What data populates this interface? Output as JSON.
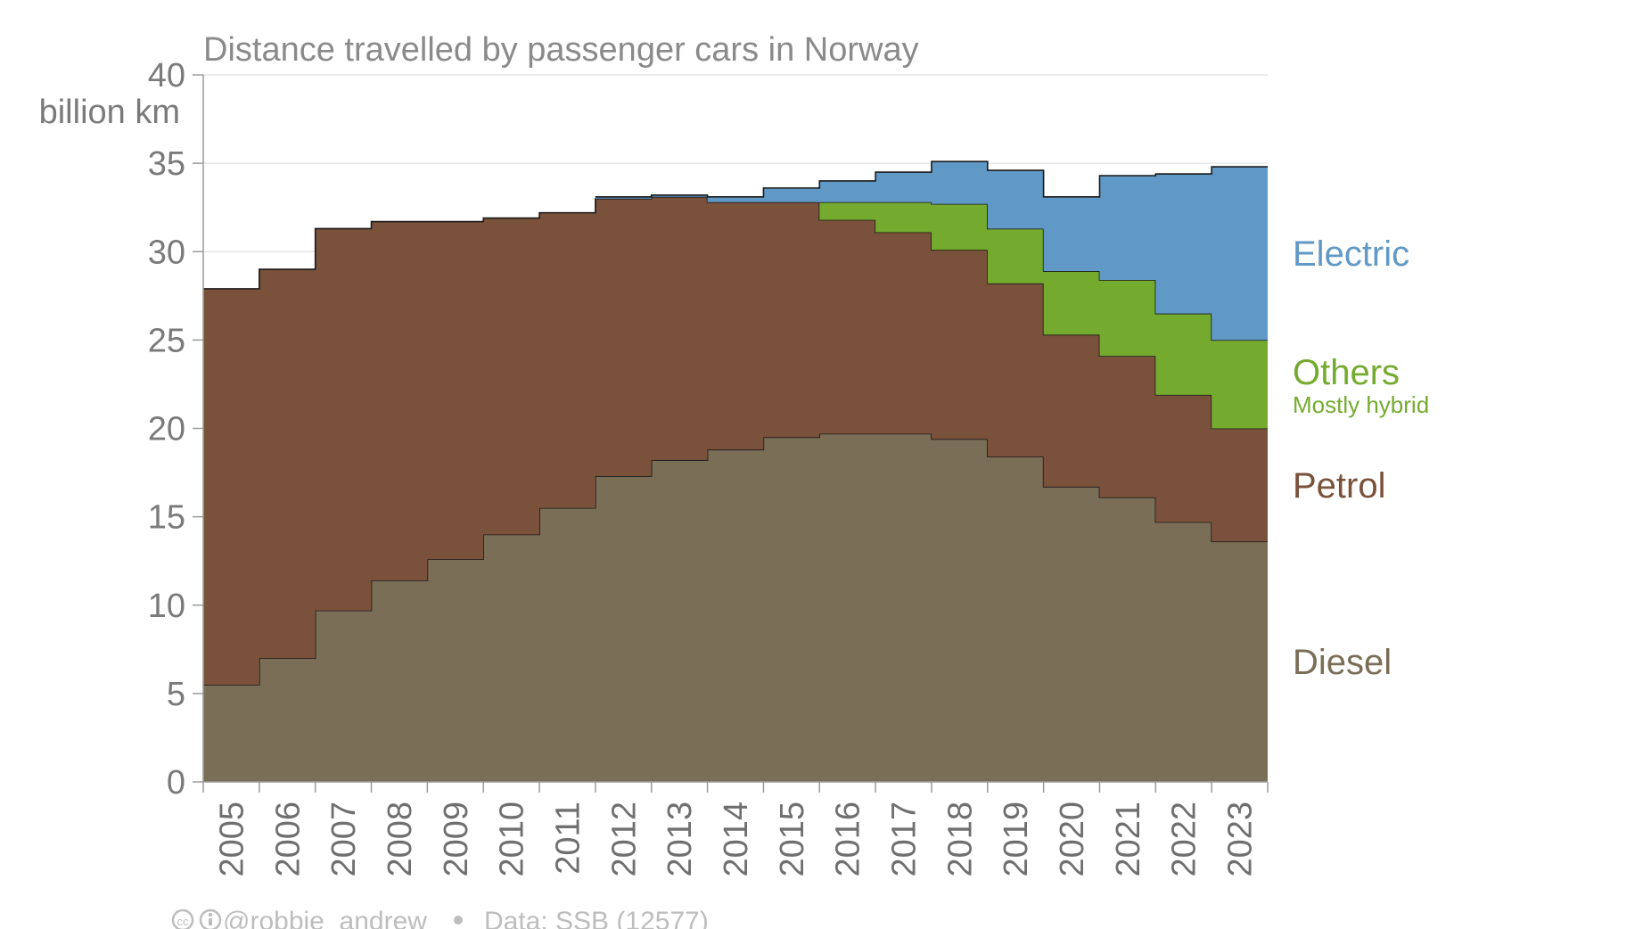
{
  "chart_data": {
    "type": "area",
    "step": true,
    "title": "Distance travelled by passenger cars in Norway",
    "ylabel": "billion km",
    "ylim": [
      0,
      40
    ],
    "yticks": [
      0,
      5,
      10,
      15,
      20,
      25,
      30,
      35,
      40
    ],
    "grid": true,
    "legend_placement": "right, labels aligned with series",
    "x": [
      "2005",
      "2006",
      "2007",
      "2008",
      "2009",
      "2010",
      "2011",
      "2012",
      "2013",
      "2014",
      "2015",
      "2016",
      "2017",
      "2018",
      "2019",
      "2020",
      "2021",
      "2022",
      "2023"
    ],
    "series": [
      {
        "name": "Diesel",
        "color": "#7a6e57",
        "values": [
          5.5,
          7.0,
          9.7,
          11.4,
          12.6,
          14.0,
          15.5,
          17.3,
          18.2,
          18.8,
          19.5,
          19.7,
          19.7,
          19.4,
          18.4,
          16.7,
          16.1,
          14.7,
          13.6
        ]
      },
      {
        "name": "Petrol",
        "color": "#7a513a",
        "values": [
          22.4,
          22.0,
          21.6,
          20.3,
          19.1,
          17.9,
          16.7,
          15.7,
          14.9,
          14.0,
          13.3,
          12.1,
          11.4,
          10.7,
          9.8,
          8.6,
          8.0,
          7.2,
          6.4
        ]
      },
      {
        "name": "Others",
        "sublabel": "Mostly hybrid",
        "color": "#74ab2f",
        "values": [
          0,
          0,
          0,
          0,
          0,
          0,
          0,
          0,
          0,
          0,
          0,
          1.0,
          1.7,
          2.6,
          3.1,
          3.6,
          4.3,
          4.6,
          5.0
        ]
      },
      {
        "name": "Electric",
        "color": "#6098c6",
        "values": [
          0,
          0,
          0,
          0,
          0,
          0,
          0,
          0.1,
          0.1,
          0.3,
          0.8,
          1.2,
          1.7,
          2.4,
          3.3,
          4.2,
          5.9,
          7.9,
          9.8
        ]
      }
    ]
  },
  "footer": {
    "credit": "@robbie_andrew",
    "source": "Data: SSB (12577)"
  }
}
